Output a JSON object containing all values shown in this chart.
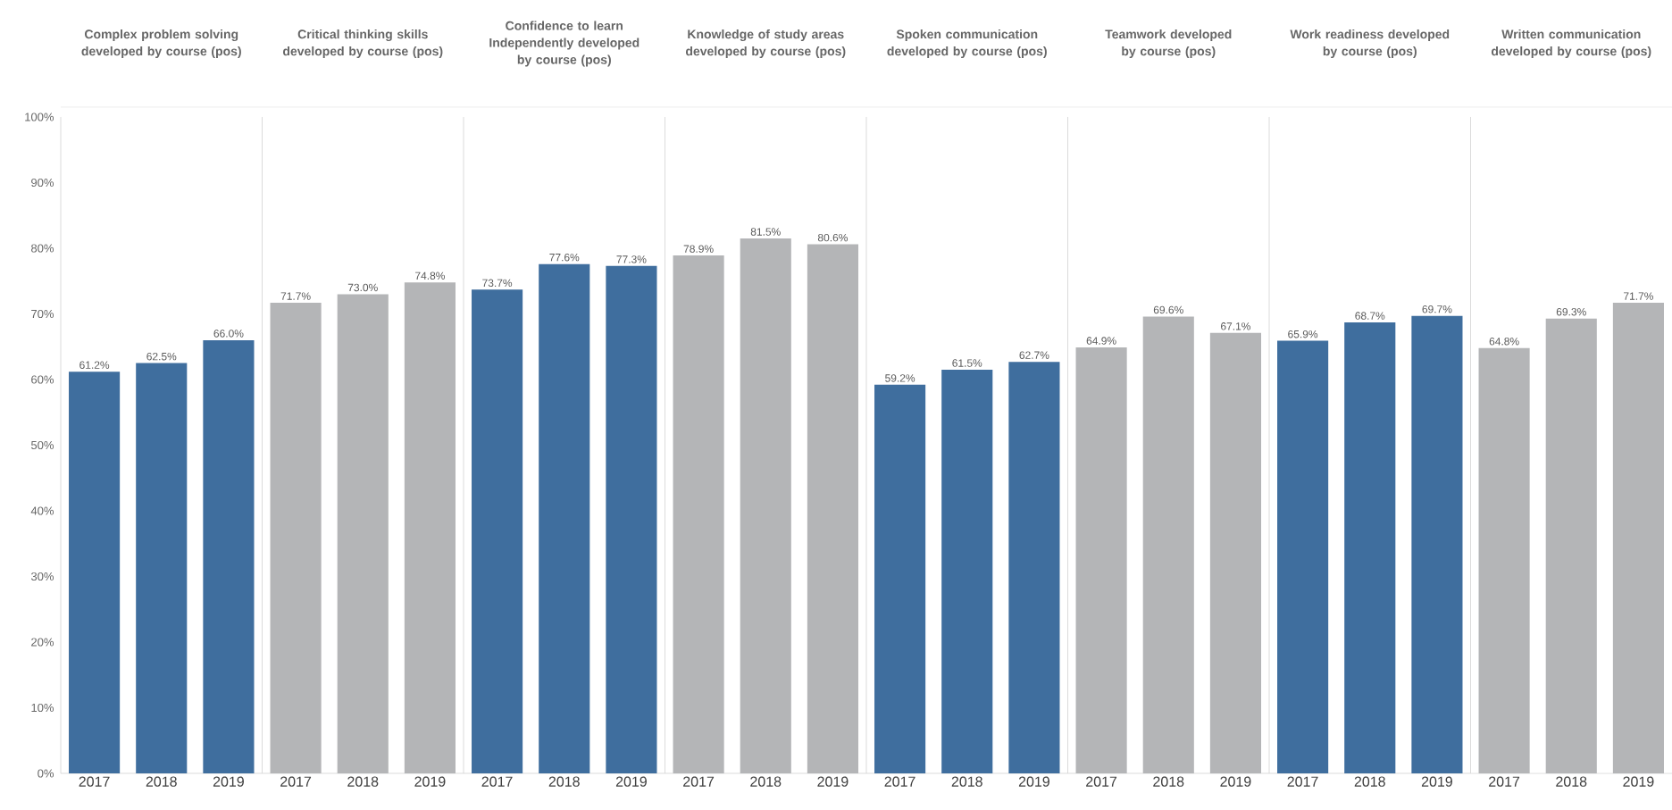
{
  "chart_data": [
    {
      "type": "bar",
      "title": "Complex problem solving developed by course (pos)",
      "categories": [
        "2017",
        "2018",
        "2019"
      ],
      "values": [
        61.2,
        62.5,
        66.0
      ],
      "value_labels": [
        "61.2%",
        "62.5%",
        "66.0%"
      ],
      "color": "#3f6e9e",
      "ylim": [
        0,
        100
      ],
      "yticks": [
        {
          "value": 0,
          "label": "0%"
        },
        {
          "value": 10,
          "label": "10%"
        },
        {
          "value": 20,
          "label": "20%"
        },
        {
          "value": 30,
          "label": "30%"
        },
        {
          "value": 40,
          "label": "40%"
        },
        {
          "value": 50,
          "label": "50%"
        },
        {
          "value": 60,
          "label": "60%"
        },
        {
          "value": 70,
          "label": "70%"
        },
        {
          "value": 80,
          "label": "80%"
        },
        {
          "value": 90,
          "label": "90%"
        },
        {
          "value": 100,
          "label": "100%"
        }
      ]
    },
    {
      "type": "bar",
      "title": "Critical thinking skills developed by course (pos)",
      "categories": [
        "2017",
        "2018",
        "2019"
      ],
      "values": [
        71.7,
        73.0,
        74.8
      ],
      "value_labels": [
        "71.7%",
        "73.0%",
        "74.8%"
      ],
      "color": "#b4b5b7",
      "ylim": [
        0,
        100
      ],
      "tick_labels": "x"
    },
    {
      "type": "bar",
      "title": "Confidence to learn Independently developed by course (pos)",
      "categories": [
        "2017",
        "2018",
        "2019"
      ],
      "values": [
        73.7,
        77.6,
        77.3
      ],
      "value_labels": [
        "73.7%",
        "77.6%",
        "77.3%"
      ],
      "color": "#3f6e9e",
      "ylim": [
        0,
        100
      ],
      "tick_labels": "x"
    },
    {
      "type": "bar",
      "title": "Knowledge of study areas developed by course (pos)",
      "categories": [
        "2017",
        "2018",
        "2019"
      ],
      "values": [
        78.9,
        81.5,
        80.6
      ],
      "value_labels": [
        "78.9%",
        "81.5%",
        "80.6%"
      ],
      "color": "#b4b5b7",
      "ylim": [
        0,
        100
      ],
      "tick_labels": "x"
    },
    {
      "type": "bar",
      "title": "Spoken communication developed by course (pos)",
      "categories": [
        "2017",
        "2018",
        "2019"
      ],
      "values": [
        59.2,
        61.5,
        62.7
      ],
      "value_labels": [
        "59.2%",
        "61.5%",
        "62.7%"
      ],
      "color": "#3f6e9e",
      "ylim": [
        0,
        100
      ],
      "tick_labels": "x"
    },
    {
      "type": "bar",
      "title": "Teamwork developed by course (pos)",
      "categories": [
        "2017",
        "2018",
        "2019"
      ],
      "values": [
        64.9,
        69.6,
        67.1
      ],
      "value_labels": [
        "64.9%",
        "69.6%",
        "67.1%"
      ],
      "color": "#b4b5b7",
      "ylim": [
        0,
        100
      ],
      "tick_labels": "x"
    },
    {
      "type": "bar",
      "title": "Work readiness developed by course (pos)",
      "categories": [
        "2017",
        "2018",
        "2019"
      ],
      "values": [
        65.9,
        68.7,
        69.7
      ],
      "value_labels": [
        "65.9%",
        "68.7%",
        "69.7%"
      ],
      "color": "#3f6e9e",
      "ylim": [
        0,
        100
      ],
      "tick_labels": "x"
    },
    {
      "type": "bar",
      "title": "Written communication developed by course (pos)",
      "categories": [
        "2017",
        "2018",
        "2019"
      ],
      "values": [
        64.8,
        69.3,
        71.7
      ],
      "value_labels": [
        "64.8%",
        "69.3%",
        "71.7%"
      ],
      "color": "#b4b5b7",
      "ylim": [
        0,
        100
      ],
      "tick_labels": "x"
    }
  ]
}
